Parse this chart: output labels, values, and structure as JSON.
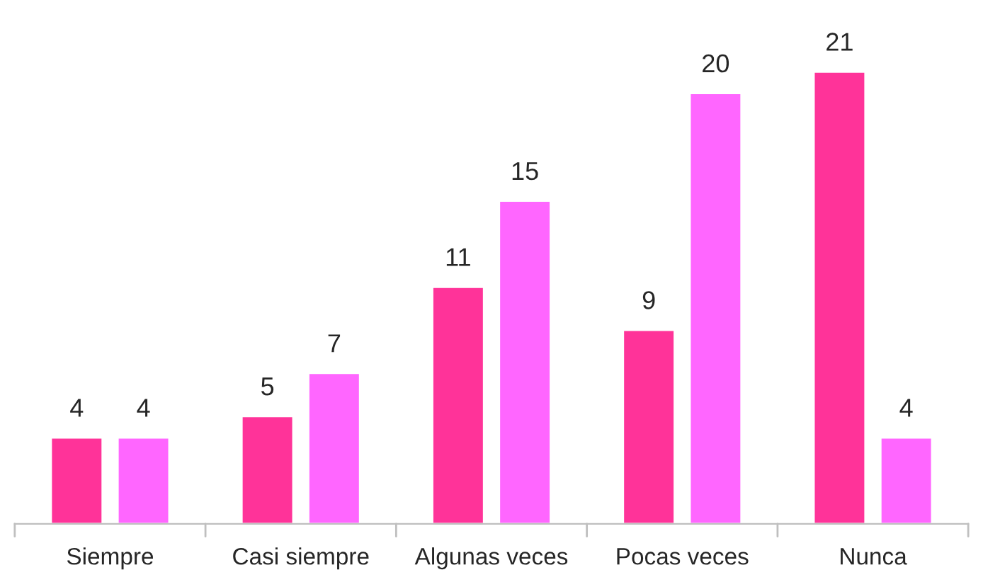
{
  "chart_data": {
    "type": "bar",
    "categories": [
      "Siempre",
      "Casi siempre",
      "Algunas veces",
      "Pocas veces",
      "Nunca"
    ],
    "series": [
      {
        "color": "#ff3399",
        "values": [
          4,
          5,
          11,
          9,
          21
        ]
      },
      {
        "color": "#ff66ff",
        "values": [
          4,
          7,
          15,
          20,
          4
        ]
      }
    ],
    "data_labels": true,
    "tick_labels": "x",
    "grid": false,
    "legend": false
  }
}
